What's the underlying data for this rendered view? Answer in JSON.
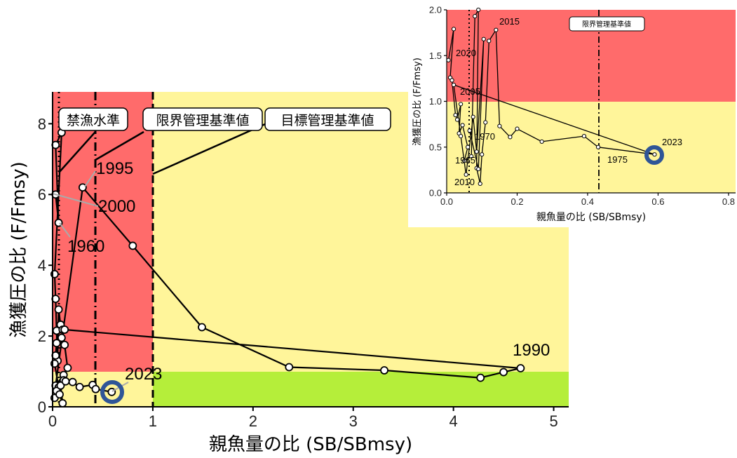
{
  "colors": {
    "red_zone": "#ff6b6b",
    "yellow_zone": "#fff59a",
    "green_zone": "#b5ee3a",
    "line": "#000000",
    "highlight_ring": "#2f5597"
  },
  "chart_data": [
    {
      "type": "scatter",
      "title": "",
      "xlabel": "親魚量の比 (SB/SBmsy)",
      "ylabel": "漁獲圧の比 (F/Fmsy)",
      "xlim": [
        0,
        5.15
      ],
      "ylim": [
        0,
        8.9
      ],
      "xticks": [
        "0",
        "1",
        "2",
        "3",
        "4",
        "5"
      ],
      "yticks": [
        "0",
        "2",
        "4",
        "6",
        "8"
      ],
      "zones": {
        "sb_threshold": 1,
        "f_threshold": 1
      },
      "reference_lines": [
        {
          "label": "禁漁水準",
          "x": 0.06,
          "style": "dotted"
        },
        {
          "label": "限界管理基準値",
          "x": 0.43,
          "style": "dashdot"
        },
        {
          "label": "目標管理基準値",
          "x": 1.0,
          "style": "dashed"
        }
      ],
      "series": [
        {
          "x": [
            0.03,
            0.06,
            0.03,
            0.09,
            0.02,
            0.03,
            0.04,
            0.05,
            0.06,
            0.08,
            0.1,
            0.12,
            0.15,
            0.11,
            0.03,
            0.3,
            0.8,
            1.49,
            2.36,
            3.31,
            4.27,
            4.5,
            4.67,
            0.12,
            0.09,
            0.04,
            0.03,
            0.02,
            0.06,
            0.11,
            0.04,
            0.02,
            0.07,
            0.1,
            0.08,
            0.13,
            0.2,
            0.27,
            0.4,
            0.43,
            0.59
          ],
          "y": [
            6.0,
            5.2,
            7.4,
            7.75,
            3.75,
            3.05,
            2.15,
            1.3,
            2.75,
            2.32,
            2.18,
            1.75,
            1.1,
            0.9,
            0.6,
            6.2,
            4.55,
            2.25,
            1.12,
            1.03,
            0.82,
            0.98,
            1.09,
            2.18,
            1.95,
            1.8,
            1.45,
            1.22,
            0.55,
            0.75,
            0.45,
            0.25,
            0.35,
            0.1,
            0.6,
            0.72,
            0.7,
            0.56,
            0.62,
            0.5,
            0.42
          ]
        }
      ],
      "annotations": [
        "1995",
        "2000",
        "1960",
        "1990",
        "2023"
      ]
    },
    {
      "type": "scatter",
      "title": "",
      "xlabel": "親魚量の比 (SB/SBmsy)",
      "ylabel": "漁獲圧の比 (F/Fmsy)",
      "xlim": [
        0,
        0.82
      ],
      "ylim": [
        0,
        2.0
      ],
      "xticks": [
        "0.0",
        "0.2",
        "0.4",
        "0.6",
        "0.8"
      ],
      "yticks": [
        "0.0",
        "0.5",
        "1.0",
        "1.5",
        "2.0"
      ],
      "reference_lines": [
        {
          "label": "限界管理基準値",
          "x": 0.43,
          "style": "dashdot"
        },
        {
          "x": 0.06,
          "style": "dotted"
        }
      ],
      "series": [
        {
          "x": [
            0.005,
            0.02,
            0.01,
            0.015,
            0.025,
            0.03,
            0.04,
            0.035,
            0.045,
            0.06,
            0.05,
            0.07,
            0.08,
            0.09,
            0.085,
            0.095,
            0.1,
            0.11,
            0.12,
            0.14,
            0.15,
            0.18,
            0.2,
            0.27,
            0.39,
            0.43,
            0.59,
            0.02,
            0.04,
            0.055,
            0.075,
            0.085,
            0.105,
            0.09,
            0.065
          ],
          "y": [
            1.45,
            1.79,
            1.26,
            1.23,
            0.85,
            0.8,
            0.97,
            0.65,
            0.74,
            0.5,
            0.35,
            0.4,
            1.93,
            2.0,
            0.27,
            0.1,
            0.42,
            0.77,
            1.66,
            1.78,
            0.73,
            0.61,
            0.7,
            0.56,
            0.62,
            0.5,
            0.42,
            1.18,
            0.62,
            0.2,
            0.83,
            0.45,
            1.68,
            0.26,
            0.68
          ]
        }
      ],
      "annotations": [
        "2015",
        "2020",
        "2005",
        "1970",
        "1965",
        "2010",
        "1975",
        "2023"
      ]
    }
  ]
}
